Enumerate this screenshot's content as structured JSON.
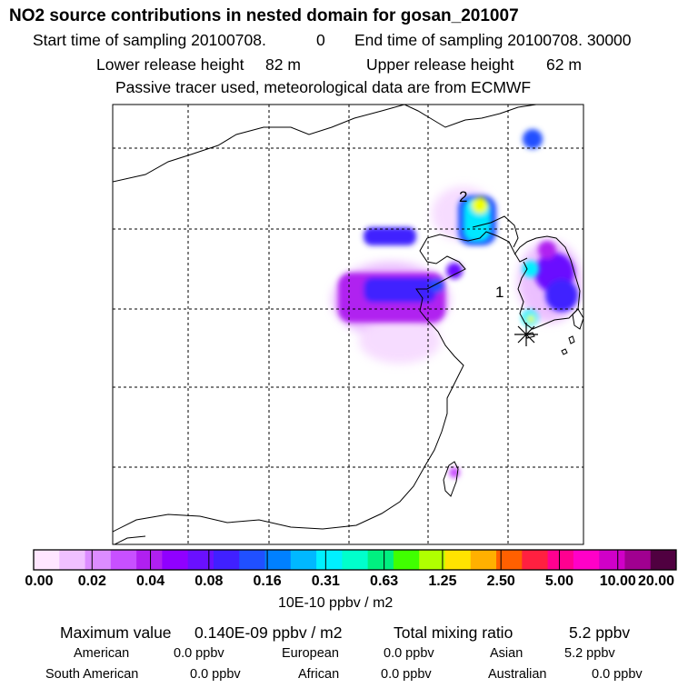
{
  "header": {
    "title": "NO2 source contributions in nested domain for gosan_201007",
    "start_label": "Start time of sampling 20100708.",
    "start_value": "0",
    "end_label": "End time of sampling 20100708. 30000",
    "lower_label": "Lower release height",
    "lower_value": "82 m",
    "upper_label": "Upper release height",
    "upper_value": "62 m",
    "note": "Passive tracer used, meteorological data are from ECMWF"
  },
  "map": {
    "labels": [
      "2",
      "1"
    ],
    "colors": {
      "coast": "#000000",
      "grid": "#000000",
      "magenta": "#b000f0",
      "violet": "#6010ff",
      "blue": "#2040ff",
      "cyan": "#00ffff",
      "yellow": "#f0ff00"
    }
  },
  "colorbar": {
    "colors": [
      "#ffe6ff",
      "#f0c0ff",
      "#dc8cff",
      "#c850ff",
      "#b020f0",
      "#9000ff",
      "#6a10ff",
      "#4020ff",
      "#2050ff",
      "#0080ff",
      "#00b8ff",
      "#00f0ff",
      "#00ffcc",
      "#00f080",
      "#40ff00",
      "#b0ff00",
      "#ffe400",
      "#ffb000",
      "#ff6000",
      "#ff2040",
      "#ff0090",
      "#ff00c8",
      "#d000c8",
      "#a00090",
      "#500040"
    ],
    "tick_labels": [
      "0.00",
      "0.02",
      "0.04",
      "0.08",
      "0.16",
      "0.31",
      "0.63",
      "1.25",
      "2.50",
      "5.00",
      "10.00",
      "20.00"
    ],
    "units": "10E-10 ppbv / m2"
  },
  "footer": {
    "max_label": "Maximum value",
    "max_value": "0.140E-09 ppbv / m2",
    "total_label": "Total mixing ratio",
    "total_value": "5.2 ppbv",
    "rows": [
      [
        {
          "name": "American",
          "value": "0.0 ppbv"
        },
        {
          "name": "European",
          "value": "0.0 ppbv"
        },
        {
          "name": "Asian",
          "value": "5.2 ppbv"
        }
      ],
      [
        {
          "name": "South American",
          "value": "0.0 ppbv"
        },
        {
          "name": "African",
          "value": "0.0 ppbv"
        },
        {
          "name": "Australian",
          "value": "0.0 ppbv"
        }
      ]
    ]
  }
}
